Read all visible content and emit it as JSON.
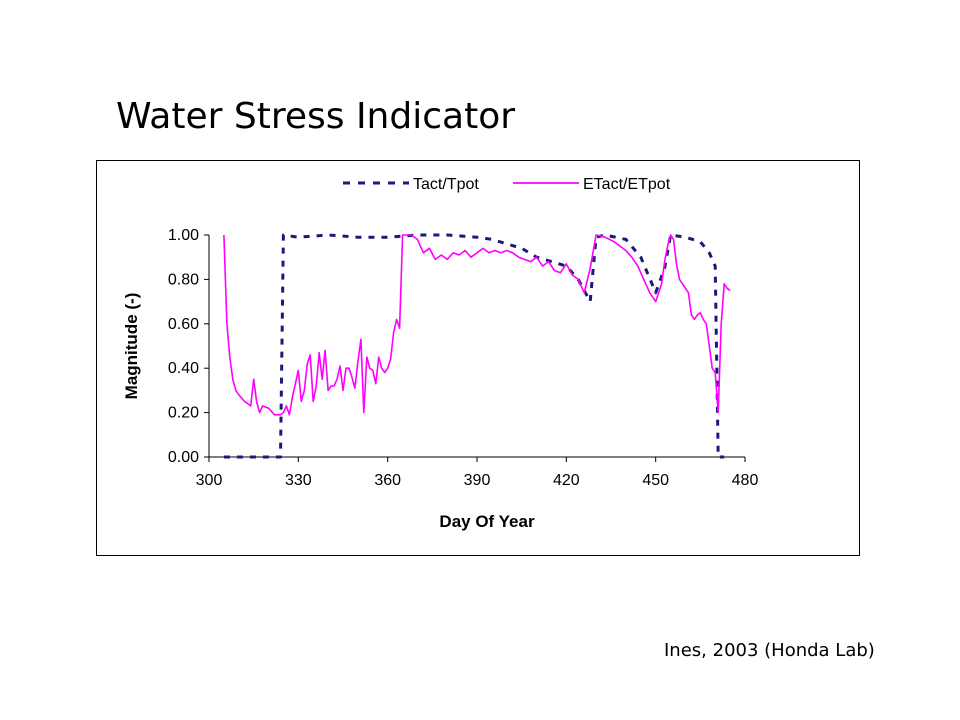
{
  "slide": {
    "title": "Water Stress Indicator",
    "citation": "Ines, 2003  (Honda Lab)"
  },
  "chart_data": {
    "type": "line",
    "title": "",
    "xlabel": "Day Of Year",
    "ylabel": "Magnitude (-)",
    "xlim": [
      300,
      480
    ],
    "ylim": [
      0,
      1.0
    ],
    "xticks": [
      "300",
      "330",
      "360",
      "390",
      "420",
      "450",
      "480"
    ],
    "yticks": [
      "0.00",
      "0.20",
      "0.40",
      "0.60",
      "0.80",
      "1.00"
    ],
    "grid": false,
    "legend": "top-center",
    "series": [
      {
        "name": "Tact/Tpot",
        "color": "#1a1a7a",
        "style": "dashed",
        "x": [
          305,
          324,
          325,
          330,
          340,
          350,
          360,
          370,
          380,
          390,
          395,
          400,
          405,
          410,
          415,
          420,
          424,
          428,
          430,
          433,
          440,
          445,
          450,
          453,
          455,
          460,
          465,
          468,
          470,
          471,
          472,
          473
        ],
        "y": [
          0.0,
          0.0,
          1.0,
          0.99,
          1.0,
          0.99,
          0.99,
          1.0,
          1.0,
          0.99,
          0.98,
          0.96,
          0.94,
          0.9,
          0.88,
          0.86,
          0.8,
          0.7,
          0.99,
          1.0,
          0.98,
          0.9,
          0.74,
          0.85,
          1.0,
          0.99,
          0.97,
          0.92,
          0.86,
          0.0,
          0.0,
          0.0
        ]
      },
      {
        "name": "ETact/ETpot",
        "color": "#ff00ff",
        "style": "solid",
        "x": [
          305,
          306,
          307,
          308,
          309,
          310,
          312,
          314,
          315,
          316,
          317,
          318,
          320,
          322,
          324,
          325,
          326,
          327,
          328,
          329,
          330,
          331,
          332,
          333,
          334,
          335,
          336,
          337,
          338,
          339,
          340,
          341,
          342,
          343,
          344,
          345,
          346,
          347,
          348,
          349,
          350,
          351,
          352,
          353,
          354,
          355,
          356,
          357,
          358,
          359,
          360,
          361,
          362,
          363,
          364,
          365,
          366,
          367,
          368,
          370,
          372,
          374,
          376,
          378,
          380,
          382,
          384,
          386,
          388,
          390,
          392,
          394,
          396,
          398,
          400,
          402,
          404,
          406,
          408,
          410,
          412,
          414,
          416,
          418,
          420,
          422,
          424,
          426,
          428,
          430,
          433,
          436,
          438,
          440,
          442,
          444,
          446,
          448,
          450,
          452,
          453,
          454,
          455,
          456,
          457,
          458,
          459,
          460,
          461,
          462,
          463,
          464,
          465,
          466,
          467,
          468,
          469,
          470,
          471,
          472,
          473,
          474,
          475
        ],
        "y": [
          1.0,
          0.6,
          0.45,
          0.35,
          0.3,
          0.28,
          0.25,
          0.23,
          0.35,
          0.25,
          0.2,
          0.23,
          0.22,
          0.19,
          0.19,
          0.2,
          0.23,
          0.19,
          0.27,
          0.33,
          0.39,
          0.25,
          0.3,
          0.42,
          0.46,
          0.25,
          0.32,
          0.47,
          0.35,
          0.48,
          0.3,
          0.32,
          0.32,
          0.35,
          0.41,
          0.3,
          0.4,
          0.4,
          0.36,
          0.31,
          0.43,
          0.53,
          0.2,
          0.45,
          0.4,
          0.39,
          0.33,
          0.45,
          0.4,
          0.38,
          0.4,
          0.44,
          0.56,
          0.62,
          0.58,
          1.0,
          1.0,
          1.0,
          1.0,
          0.98,
          0.92,
          0.94,
          0.89,
          0.91,
          0.89,
          0.92,
          0.91,
          0.93,
          0.9,
          0.92,
          0.94,
          0.92,
          0.93,
          0.92,
          0.93,
          0.92,
          0.9,
          0.89,
          0.88,
          0.9,
          0.86,
          0.88,
          0.84,
          0.83,
          0.87,
          0.82,
          0.8,
          0.74,
          0.85,
          1.0,
          0.99,
          0.97,
          0.95,
          0.93,
          0.9,
          0.86,
          0.8,
          0.74,
          0.7,
          0.78,
          0.88,
          0.95,
          1.0,
          0.98,
          0.87,
          0.8,
          0.78,
          0.76,
          0.74,
          0.64,
          0.62,
          0.64,
          0.65,
          0.62,
          0.6,
          0.5,
          0.4,
          0.38,
          0.2,
          0.6,
          0.78,
          0.76,
          0.75
        ]
      }
    ]
  }
}
